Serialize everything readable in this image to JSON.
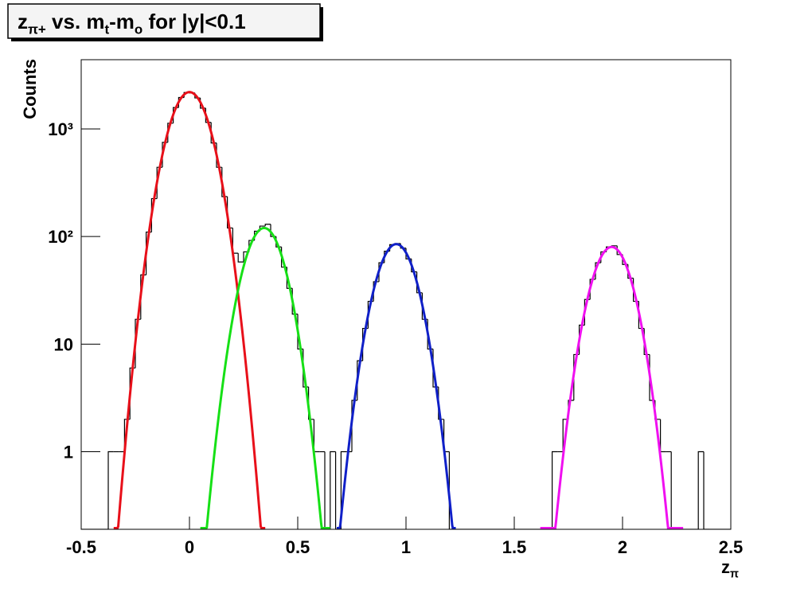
{
  "chart_data": {
    "type": "histogram",
    "title": [
      {
        "text": "z"
      },
      {
        "text": "π+",
        "sub": true
      },
      {
        "text": " vs. m"
      },
      {
        "text": "t",
        "sub": true
      },
      {
        "text": "-m"
      },
      {
        "text": "o",
        "sub": true
      },
      {
        "text": " for |y|<0.1"
      }
    ],
    "x_label": [
      {
        "text": "z"
      },
      {
        "text": "π",
        "sub": true
      }
    ],
    "y_label": "Counts",
    "log_y": true,
    "color": "#000000",
    "bins": [
      -0.5,
      -0.475,
      -0.45,
      -0.425,
      -0.4,
      -0.375,
      -0.35,
      -0.325,
      -0.3,
      -0.275,
      -0.25,
      -0.225,
      -0.2,
      -0.175,
      -0.15,
      -0.125,
      -0.1,
      -0.075,
      -0.05,
      -0.025,
      0,
      0.025,
      0.05,
      0.075,
      0.1,
      0.125,
      0.15,
      0.175,
      0.2,
      0.225,
      0.25,
      0.275,
      0.3,
      0.325,
      0.35,
      0.375,
      0.4,
      0.425,
      0.45,
      0.475,
      0.5,
      0.525,
      0.55,
      0.575,
      0.6,
      0.625,
      0.65,
      0.675,
      0.7,
      0.725,
      0.75,
      0.775,
      0.8,
      0.825,
      0.85,
      0.875,
      0.9,
      0.925,
      0.95,
      0.975,
      1,
      1.025,
      1.05,
      1.075,
      1.1,
      1.125,
      1.15,
      1.175,
      1.2,
      1.225,
      1.25,
      1.275,
      1.3,
      1.325,
      1.35,
      1.375,
      1.4,
      1.425,
      1.45,
      1.475,
      1.5,
      1.525,
      1.55,
      1.575,
      1.6,
      1.625,
      1.65,
      1.675,
      1.7,
      1.725,
      1.75,
      1.775,
      1.8,
      1.825,
      1.85,
      1.875,
      1.9,
      1.925,
      1.95,
      1.975,
      2,
      2.025,
      2.05,
      2.075,
      2.1,
      2.125,
      2.15,
      2.175,
      2.2,
      2.225,
      2.25,
      2.275,
      2.3,
      2.325,
      2.35,
      2.375,
      2.4,
      2.425,
      2.45,
      2.475,
      2.5
    ],
    "values": [
      0,
      0,
      0,
      0,
      0,
      1,
      1,
      1,
      2,
      6,
      17,
      44,
      110,
      225,
      440,
      750,
      1130,
      1580,
      1960,
      2180,
      2160,
      1940,
      1560,
      1150,
      740,
      440,
      235,
      120,
      70,
      58,
      72,
      92,
      112,
      125,
      130,
      100,
      80,
      52,
      33,
      19,
      9,
      4,
      2,
      1,
      1,
      0,
      1,
      0,
      1,
      1,
      3,
      7,
      14,
      25,
      38,
      57,
      73,
      84,
      86,
      78,
      62,
      47,
      30,
      17,
      9,
      4,
      2,
      1,
      0,
      0,
      0,
      0,
      0,
      0,
      0,
      0,
      0,
      0,
      0,
      0,
      0,
      0,
      0,
      0,
      0,
      0,
      0,
      1,
      1,
      2,
      3,
      8,
      15,
      26,
      40,
      57,
      72,
      80,
      82,
      68,
      55,
      41,
      25,
      14,
      8,
      3,
      2,
      1,
      1,
      0,
      0,
      0,
      0,
      0,
      1,
      0,
      0,
      0,
      0,
      0
    ],
    "fits": [
      {
        "color": "#e8101a",
        "constant": 2200,
        "mean": 0,
        "sigma": 0.0763,
        "range": [
          -0.35,
          0.35
        ]
      },
      {
        "color": "#16e016",
        "constant": 120,
        "mean": 0.345,
        "sigma": 0.074,
        "range": [
          0.05,
          0.65
        ]
      },
      {
        "color": "#1020c8",
        "constant": 85,
        "mean": 0.955,
        "sigma": 0.0745,
        "range": [
          0.68,
          1.23
        ]
      },
      {
        "color": "#f010f0",
        "constant": 80,
        "mean": 1.95,
        "sigma": 0.075,
        "range": [
          1.62,
          2.28
        ]
      }
    ],
    "xlim": [
      -0.5,
      2.5
    ],
    "xticks": [
      -0.5,
      0,
      0.5,
      1,
      1.5,
      2,
      2.5
    ],
    "ylim": [
      0.19,
      4400
    ],
    "yticks": [
      1,
      10,
      {
        "value": 100,
        "label": "10²"
      },
      {
        "value": 1000,
        "label": "10³"
      }
    ]
  }
}
